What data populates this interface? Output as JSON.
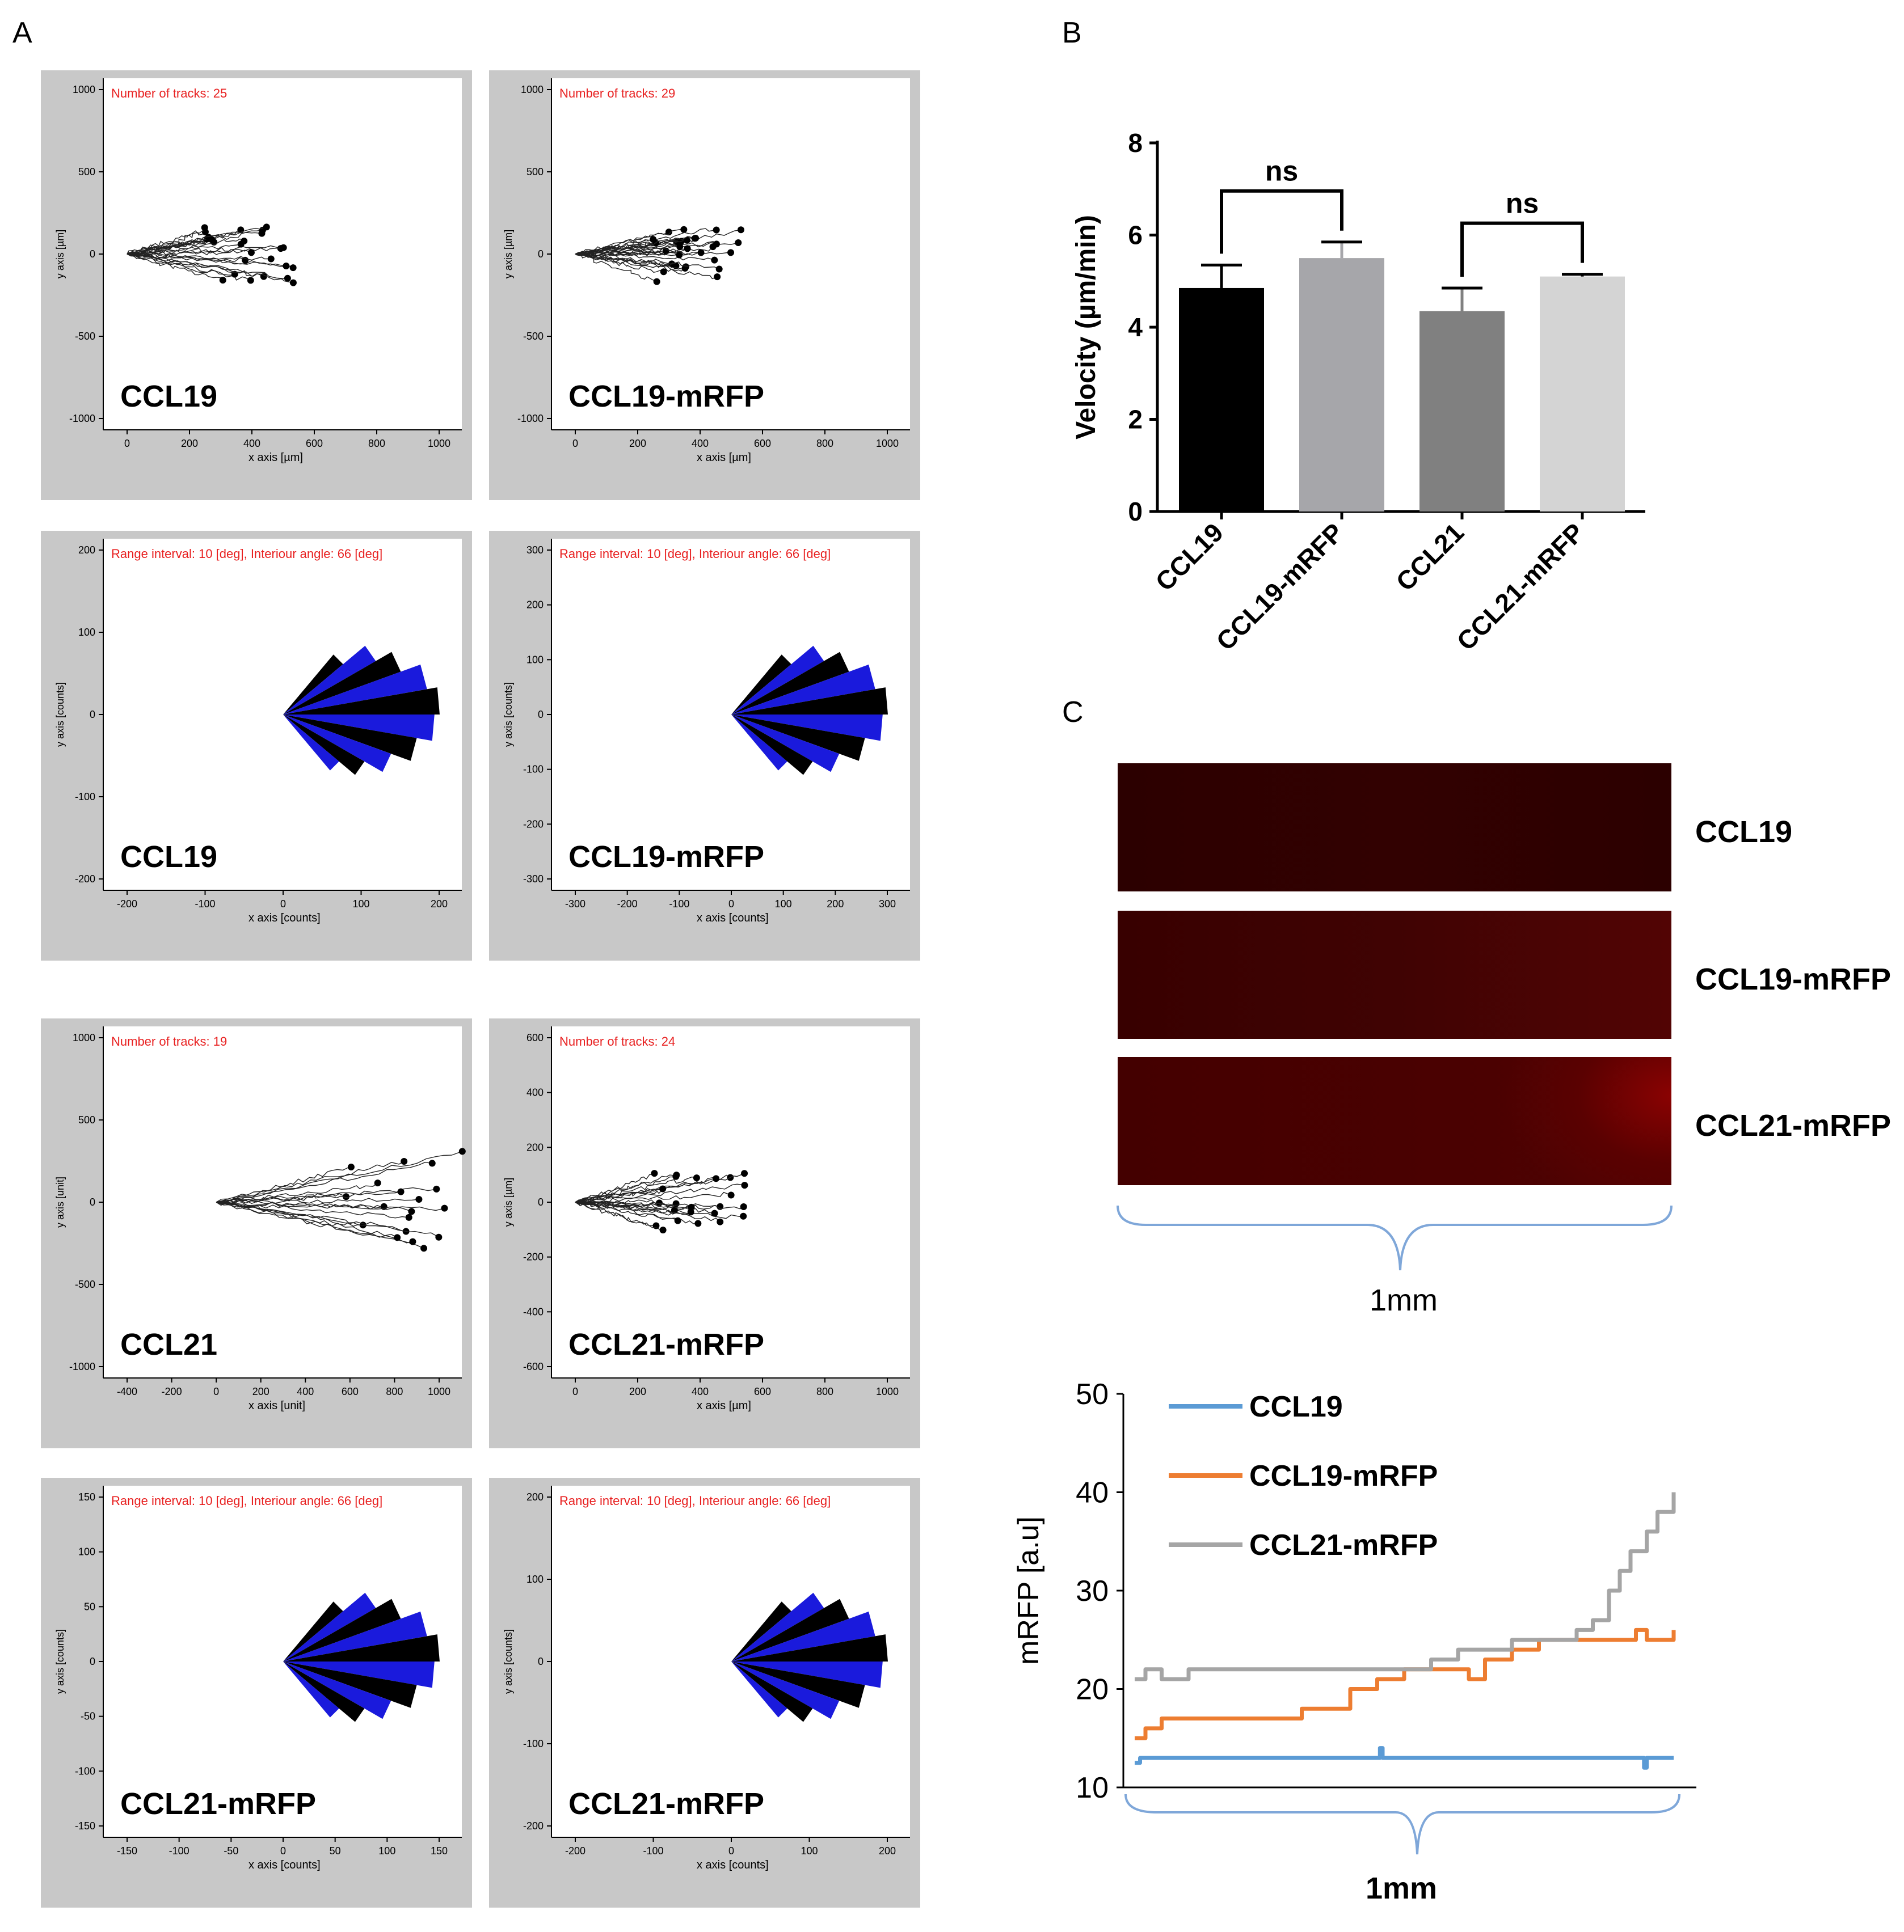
{
  "figure": {
    "panel_a": "A",
    "panel_b": "B",
    "panel_c": "C"
  },
  "tiles": [
    {
      "id": "t1",
      "kind": "tracks",
      "header": "Number of tracks: 25",
      "condition": "CCL19",
      "xlabel": "x axis [µm]",
      "ylabel": "y axis [µm]",
      "xticks": [
        "0",
        "200",
        "400",
        "600",
        "800",
        "1000"
      ],
      "yticks": [
        "1000",
        "500",
        "0",
        "-500",
        "-1000"
      ]
    },
    {
      "id": "t2",
      "kind": "tracks",
      "header": "Number of tracks: 29",
      "condition": "CCL19-mRFP",
      "xlabel": "x axis [µm]",
      "ylabel": "y axis [µm]",
      "xticks": [
        "0",
        "200",
        "400",
        "600",
        "800",
        "1000"
      ],
      "yticks": [
        "1000",
        "500",
        "0",
        "-500",
        "-1000"
      ]
    },
    {
      "id": "t3",
      "kind": "rose",
      "header": "Range interval: 10 [deg], Interiour angle: 66 [deg]",
      "condition": "CCL19",
      "xlabel": "x axis [counts]",
      "ylabel": "y axis [counts]",
      "xticks": [
        "-200",
        "-100",
        "0",
        "100",
        "200"
      ],
      "yticks": [
        "200",
        "100",
        "0",
        "-100",
        "-200"
      ]
    },
    {
      "id": "t4",
      "kind": "rose",
      "header": "Range interval: 10 [deg], Interiour angle: 66 [deg]",
      "condition": "CCL19-mRFP",
      "xlabel": "x axis [counts]",
      "ylabel": "y axis [counts]",
      "xticks": [
        "-300",
        "-200",
        "-100",
        "0",
        "100",
        "200",
        "300"
      ],
      "yticks": [
        "300",
        "200",
        "100",
        "0",
        "-100",
        "-200",
        "-300"
      ]
    },
    {
      "id": "t5",
      "kind": "tracks",
      "header": "Number of tracks: 19",
      "condition": "CCL21",
      "xlabel": "x axis [unit]",
      "ylabel": "y axis [unit]",
      "xticks": [
        "-400",
        "-200",
        "0",
        "200",
        "400",
        "600",
        "800",
        "1000"
      ],
      "yticks": [
        "1000",
        "500",
        "0",
        "-500",
        "-1000"
      ]
    },
    {
      "id": "t6",
      "kind": "tracks",
      "header": "Number of tracks: 24",
      "condition": "CCL21-mRFP",
      "xlabel": "x axis [µm]",
      "ylabel": "y axis [µm]",
      "xticks": [
        "0",
        "200",
        "400",
        "600",
        "800",
        "1000"
      ],
      "yticks": [
        "600",
        "400",
        "200",
        "0",
        "-200",
        "-400",
        "-600"
      ]
    },
    {
      "id": "t7",
      "kind": "rose",
      "header": "Range interval: 10 [deg], Interiour angle: 66 [deg]",
      "condition": "CCL21-mRFP",
      "xlabel": "x axis [counts]",
      "ylabel": "y axis [counts]",
      "xticks": [
        "-150",
        "-100",
        "-50",
        "0",
        "50",
        "100",
        "150"
      ],
      "yticks": [
        "150",
        "100",
        "50",
        "0",
        "-50",
        "-100",
        "-150"
      ]
    },
    {
      "id": "t8",
      "kind": "rose",
      "header": "Range interval: 10 [deg], Interiour angle: 66 [deg]",
      "condition": "CCL21-mRFP",
      "xlabel": "x axis [counts]",
      "ylabel": "y axis [counts]",
      "xticks": [
        "-200",
        "-100",
        "0",
        "100",
        "200"
      ],
      "yticks": [
        "200",
        "100",
        "0",
        "-100",
        "-200"
      ]
    }
  ],
  "strips": {
    "labels": [
      "CCL19",
      "CCL19-mRFP",
      "CCL21-mRFP"
    ],
    "scale": "1mm"
  },
  "colors": {
    "blue": "#1a1adc",
    "black": "#000000",
    "red_label": "#e82020",
    "ccl19": "#5b9bd5",
    "ccl19_mrfp": "#ed7d31",
    "ccl21_mrfp": "#a5a5a5"
  },
  "chart_data": [
    {
      "type": "bar",
      "title": "",
      "xlabel": "",
      "ylabel": "Velocity (µm/min)",
      "categories": [
        "CCL19",
        "CCL19-mRFP",
        "CCL21",
        "CCL21-mRFP"
      ],
      "values": [
        4.85,
        5.5,
        4.35,
        5.1
      ],
      "errors": [
        0.5,
        0.35,
        0.5,
        0.05
      ],
      "bar_colors": [
        "#000000",
        "#a6a6aa",
        "#808080",
        "#d4d4d4"
      ],
      "ylim": [
        0,
        8
      ],
      "yticks": [
        0,
        2,
        4,
        6,
        8
      ],
      "annotations": [
        {
          "from": "CCL19",
          "to": "CCL19-mRFP",
          "text": "ns"
        },
        {
          "from": "CCL21",
          "to": "CCL21-mRFP",
          "text": "ns"
        }
      ]
    },
    {
      "type": "line",
      "title": "",
      "xlabel": "1mm",
      "ylabel": "mRFP [a.u]",
      "ylim": [
        10,
        50
      ],
      "yticks": [
        10,
        20,
        30,
        40,
        50
      ],
      "x_range": [
        0,
        1
      ],
      "series": [
        {
          "name": "CCL19",
          "color": "#5b9bd5",
          "x": [
            0,
            0.01,
            0.02,
            0.45,
            0.455,
            0.46,
            0.94,
            0.945,
            0.95,
            1.0
          ],
          "values": [
            12.5,
            13,
            13,
            13,
            14,
            13,
            13,
            12,
            13,
            13
          ]
        },
        {
          "name": "CCL19-mRFP",
          "color": "#ed7d31",
          "x": [
            0,
            0.02,
            0.05,
            0.1,
            0.2,
            0.3,
            0.31,
            0.4,
            0.45,
            0.5,
            0.55,
            0.6,
            0.62,
            0.65,
            0.7,
            0.75,
            0.8,
            0.85,
            0.9,
            0.93,
            0.95,
            1.0
          ],
          "values": [
            15,
            16,
            17,
            17,
            17,
            17,
            18,
            20,
            21,
            22,
            22,
            22,
            21,
            23,
            24,
            25,
            25,
            25,
            25,
            26,
            25,
            26
          ]
        },
        {
          "name": "CCL21-mRFP",
          "color": "#a5a5a5",
          "x": [
            0,
            0.02,
            0.05,
            0.1,
            0.2,
            0.3,
            0.4,
            0.45,
            0.5,
            0.55,
            0.6,
            0.65,
            0.7,
            0.75,
            0.8,
            0.82,
            0.85,
            0.88,
            0.9,
            0.92,
            0.95,
            0.97,
            1.0
          ],
          "values": [
            21,
            22,
            21,
            22,
            22,
            22,
            22,
            22,
            22,
            23,
            24,
            24,
            25,
            25,
            25,
            26,
            27,
            30,
            32,
            34,
            36,
            38,
            40
          ]
        }
      ]
    }
  ]
}
